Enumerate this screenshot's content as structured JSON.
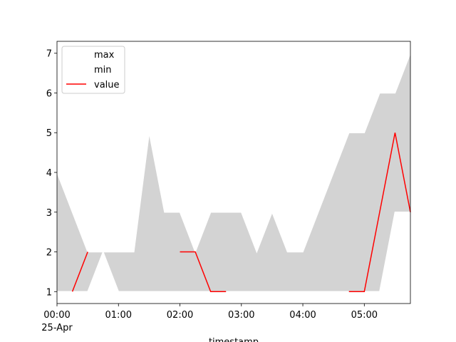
{
  "chart_data": {
    "type": "line",
    "xlabel": "timestamp",
    "date_label": "25-Apr",
    "x": [
      "00:00",
      "00:15",
      "00:30",
      "00:45",
      "01:00",
      "01:15",
      "01:30",
      "01:45",
      "02:00",
      "02:15",
      "02:30",
      "02:45",
      "03:00",
      "03:15",
      "03:30",
      "03:45",
      "04:00",
      "04:15",
      "04:30",
      "04:45",
      "05:00",
      "05:15",
      "05:30",
      "05:45"
    ],
    "series": [
      {
        "name": "max",
        "color": "#ffffff",
        "values": [
          4,
          3,
          2,
          2,
          2,
          2,
          5,
          3,
          3,
          2,
          3,
          3,
          3,
          2,
          3,
          2,
          2,
          3,
          4,
          5,
          5,
          6,
          6,
          7
        ]
      },
      {
        "name": "min",
        "color": "#ffffff",
        "values": [
          1,
          1,
          1,
          2,
          1,
          1,
          1,
          1,
          1,
          1,
          1,
          1,
          1,
          1,
          1,
          1,
          1,
          1,
          1,
          1,
          1,
          1,
          3,
          3
        ]
      },
      {
        "name": "value",
        "color": "#ff0000",
        "values": [
          null,
          1,
          2,
          null,
          null,
          null,
          null,
          null,
          2,
          2,
          1,
          1,
          null,
          null,
          null,
          null,
          null,
          null,
          null,
          1,
          1,
          3,
          5,
          3
        ]
      }
    ],
    "fill_color": "#d3d3d3",
    "xlim": [
      "00:00",
      "05:45"
    ],
    "xticks": [
      "00:00",
      "01:00",
      "02:00",
      "03:00",
      "04:00",
      "05:00"
    ],
    "ylim": [
      0.7,
      7.3
    ],
    "yticks": [
      1,
      2,
      3,
      4,
      5,
      6,
      7
    ],
    "legend": "upper left"
  }
}
